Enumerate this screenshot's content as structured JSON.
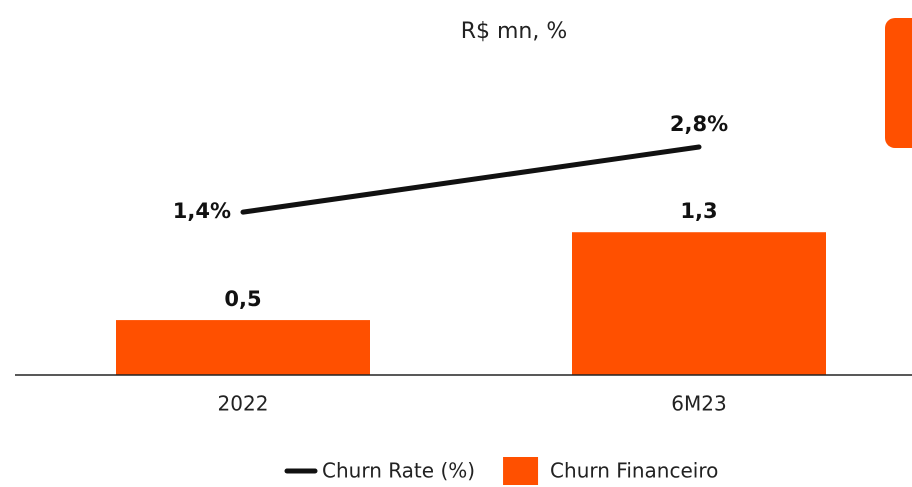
{
  "chart_data": {
    "type": "bar",
    "title": "R$ mn, %",
    "categories": [
      "2022",
      "6M23"
    ],
    "series": [
      {
        "name": "Churn Rate (%)",
        "type": "line",
        "axis": "y2",
        "color": "#111111",
        "values": [
          1.4,
          2.8
        ],
        "value_labels": [
          "1,4%",
          "2,8%"
        ]
      },
      {
        "name": "Churn Financeiro",
        "type": "bar",
        "color": "#ff5000",
        "values": [
          0.5,
          1.3
        ],
        "value_labels": [
          "0,5",
          "1,3"
        ]
      }
    ],
    "ylim": [
      0,
      3.05
    ],
    "y2lim": [
      -2.1,
      5.1
    ],
    "legend": "bottom"
  }
}
